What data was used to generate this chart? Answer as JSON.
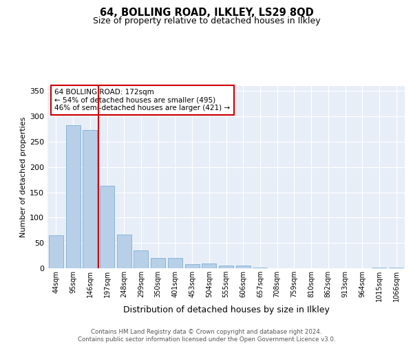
{
  "title_line1": "64, BOLLING ROAD, ILKLEY, LS29 8QD",
  "title_line2": "Size of property relative to detached houses in Ilkley",
  "xlabel": "Distribution of detached houses by size in Ilkley",
  "ylabel": "Number of detached properties",
  "categories": [
    "44sqm",
    "95sqm",
    "146sqm",
    "197sqm",
    "248sqm",
    "299sqm",
    "350sqm",
    "401sqm",
    "453sqm",
    "504sqm",
    "555sqm",
    "606sqm",
    "657sqm",
    "708sqm",
    "759sqm",
    "810sqm",
    "862sqm",
    "913sqm",
    "964sqm",
    "1015sqm",
    "1066sqm"
  ],
  "values": [
    65,
    283,
    273,
    163,
    67,
    35,
    20,
    20,
    8,
    10,
    5,
    5,
    1,
    0,
    0,
    0,
    0,
    0,
    0,
    2,
    2
  ],
  "bar_color": "#b8cfe8",
  "bar_edge_color": "#7aafd4",
  "vline_color": "#cc0000",
  "vline_x": 2.5,
  "annotation_text": "64 BOLLING ROAD: 172sqm\n← 54% of detached houses are smaller (495)\n46% of semi-detached houses are larger (421) →",
  "ylim": [
    0,
    360
  ],
  "yticks": [
    0,
    50,
    100,
    150,
    200,
    250,
    300,
    350
  ],
  "plot_bg_color": "#e8eef8",
  "footer_text": "Contains HM Land Registry data © Crown copyright and database right 2024.\nContains public sector information licensed under the Open Government Licence v3.0."
}
